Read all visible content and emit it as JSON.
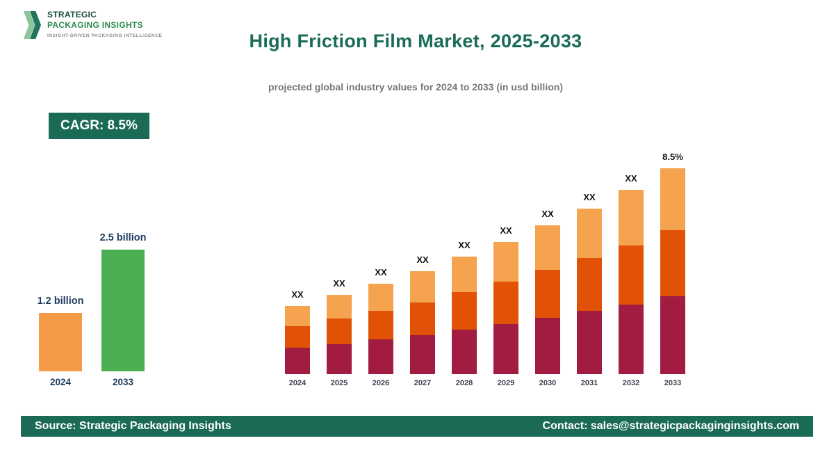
{
  "logo": {
    "line1": "STRATEGIC",
    "line2": "PACKAGING INSIGHTS",
    "tagline": "INSIGHT-DRIVEN PACKAGING INTELLIGENCE"
  },
  "header": {
    "title": "High Friction Film Market, 2025-2033",
    "subtitle": "projected global industry values for 2024 to 2033 (in usd billion)"
  },
  "cagr_badge": "CAGR: 8.5%",
  "colors": {
    "teal": "#1A6A56",
    "orange": "#F49C45",
    "green": "#4CAE52",
    "maroon": "#A21C41",
    "dark_orange": "#E25206",
    "light_orange": "#F5A34F"
  },
  "chart_data": [
    {
      "name": "summary-comparison",
      "type": "bar",
      "unit": "USD billion",
      "categories": [
        "2024",
        "2033"
      ],
      "values": [
        1.2,
        2.5
      ],
      "value_labels": [
        "1.2 billion",
        "2.5 billion"
      ],
      "bar_colors": [
        "#F49C45",
        "#4CAE52"
      ]
    },
    {
      "name": "projection-2024-2033",
      "type": "stacked-bar",
      "unit": "USD billion",
      "categories": [
        "2024",
        "2025",
        "2026",
        "2027",
        "2028",
        "2029",
        "2030",
        "2031",
        "2032",
        "2033"
      ],
      "annotations": [
        "XX",
        "XX",
        "XX",
        "XX",
        "XX",
        "XX",
        "XX",
        "XX",
        "XX",
        "8.5%"
      ],
      "series": [
        {
          "name": "segment-bottom",
          "color": "#A21C41",
          "values": [
            0.46,
            0.49,
            0.54,
            0.58,
            0.63,
            0.68,
            0.74,
            0.81,
            0.87,
            0.95
          ]
        },
        {
          "name": "segment-middle",
          "color": "#E25206",
          "values": [
            0.38,
            0.42,
            0.45,
            0.49,
            0.53,
            0.58,
            0.63,
            0.68,
            0.74,
            0.8
          ]
        },
        {
          "name": "segment-top",
          "color": "#F5A34F",
          "values": [
            0.36,
            0.39,
            0.42,
            0.46,
            0.5,
            0.54,
            0.59,
            0.63,
            0.69,
            0.75
          ]
        }
      ],
      "totals": [
        1.2,
        1.3,
        1.41,
        1.53,
        1.66,
        1.8,
        1.96,
        2.12,
        2.3,
        2.5
      ]
    }
  ],
  "footer": {
    "source": "Source: Strategic Packaging Insights",
    "contact": "Contact: sales@strategicpackaginginsights.com"
  }
}
